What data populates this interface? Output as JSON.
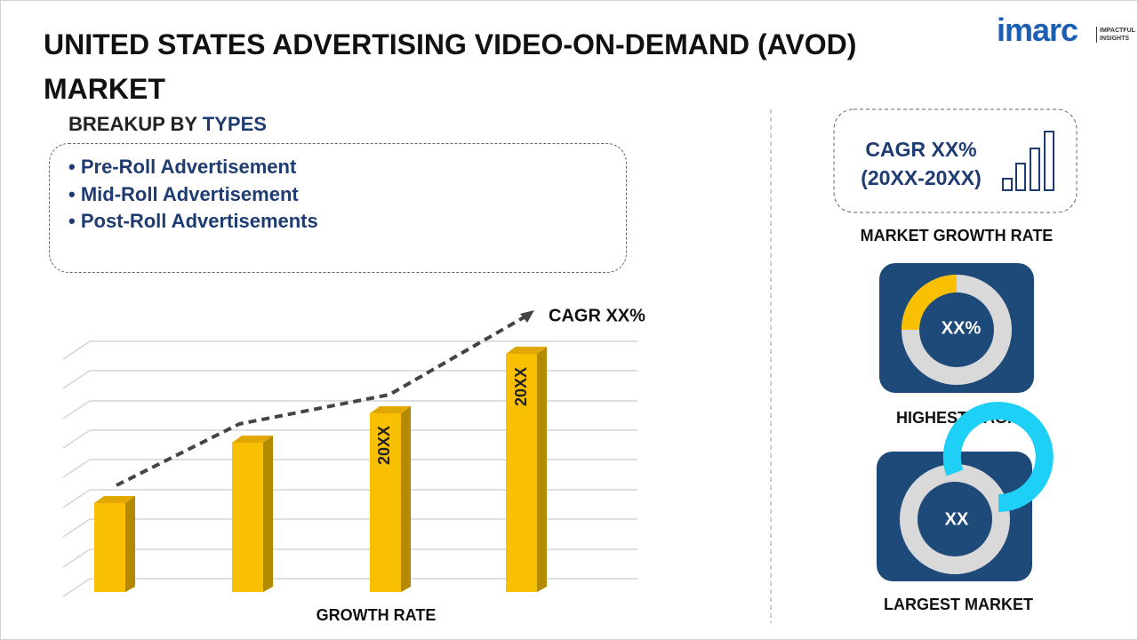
{
  "header": {
    "title": "UNITED STATES ADVERTISING VIDEO-ON-DEMAND (AVOD) MARKET",
    "logo": {
      "name": "imarc",
      "tagline": [
        "IMPACTFUL",
        "INSIGHTS"
      ]
    }
  },
  "breakup": {
    "label": "BREAKUP BY",
    "highlight": "TYPES",
    "items": [
      "Pre-Roll Advertisement",
      "Mid-Roll Advertisement",
      "Post-Roll Advertisements"
    ]
  },
  "growth_chart": {
    "cagr": "CAGR XX%",
    "bar_labels": [
      "20XX",
      "20XX"
    ],
    "caption": "GROWTH RATE"
  },
  "side": {
    "growth": {
      "value": "CAGR XX%",
      "period": "(20XX-20XX)",
      "caption": "MARKET GROWTH RATE"
    },
    "highest": {
      "value": "XX%",
      "caption": "HIGHEST CAGR"
    },
    "largest": {
      "value": "XX",
      "caption": "LARGEST MARKET"
    }
  }
}
